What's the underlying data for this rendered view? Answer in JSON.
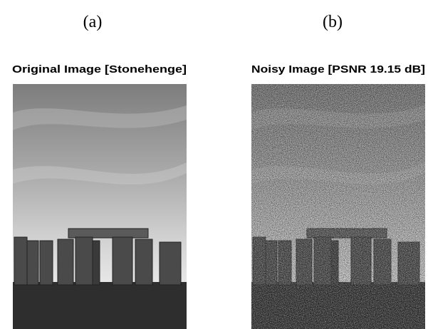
{
  "panels": [
    {
      "label": "(a)",
      "title": "Original Image [Stonehenge]"
    },
    {
      "label": "(b)",
      "title": "Noisy Image [PSNR 19.15 dB]"
    }
  ]
}
